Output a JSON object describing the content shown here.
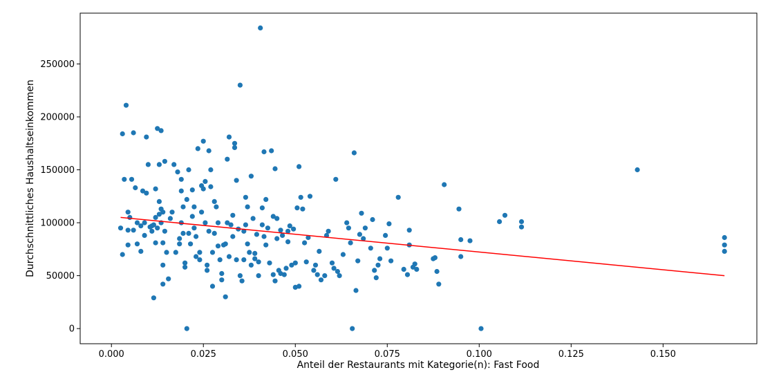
{
  "chart_data": {
    "type": "scatter",
    "title": "",
    "xlabel": "Anteil der Restaurants mit Kategorie(n): Fast Food",
    "ylabel": "Durchschnittliches Haushaltseinkommen",
    "xlim": [
      -0.0085,
      0.1755
    ],
    "ylim": [
      -14300,
      298000
    ],
    "x_ticks": [
      0.0,
      0.025,
      0.05,
      0.075,
      0.1,
      0.125,
      0.15
    ],
    "x_tick_labels": [
      "0.000",
      "0.025",
      "0.050",
      "0.075",
      "0.100",
      "0.125",
      "0.150"
    ],
    "y_ticks": [
      0,
      50000,
      100000,
      150000,
      200000,
      250000
    ],
    "y_tick_labels": [
      "0",
      "50000",
      "100000",
      "150000",
      "200000",
      "250000"
    ],
    "grid": false,
    "legend": "none",
    "colors": {
      "points": "#1f77b4",
      "trend_line": "#ff0000",
      "axes": "#000000"
    },
    "trend_line": {
      "x": [
        0.0025,
        0.1667
      ],
      "y": [
        105000,
        50000
      ]
    },
    "points": [
      [
        0.0025,
        95000
      ],
      [
        0.003,
        70000
      ],
      [
        0.003,
        184000
      ],
      [
        0.0035,
        141000
      ],
      [
        0.004,
        211000
      ],
      [
        0.0045,
        110000
      ],
      [
        0.0045,
        93000
      ],
      [
        0.0045,
        79000
      ],
      [
        0.005,
        105000
      ],
      [
        0.0055,
        141000
      ],
      [
        0.006,
        185000
      ],
      [
        0.006,
        93000
      ],
      [
        0.0065,
        133000
      ],
      [
        0.007,
        100000
      ],
      [
        0.007,
        80000
      ],
      [
        0.008,
        97000
      ],
      [
        0.008,
        73000
      ],
      [
        0.0085,
        130000
      ],
      [
        0.009,
        100000
      ],
      [
        0.009,
        88000
      ],
      [
        0.0095,
        181000
      ],
      [
        0.0095,
        128000
      ],
      [
        0.01,
        155000
      ],
      [
        0.0105,
        96000
      ],
      [
        0.011,
        92000
      ],
      [
        0.011,
        97000
      ],
      [
        0.0115,
        29000
      ],
      [
        0.0115,
        98000
      ],
      [
        0.012,
        105000
      ],
      [
        0.012,
        81000
      ],
      [
        0.012,
        132000
      ],
      [
        0.0125,
        189000
      ],
      [
        0.0125,
        95000
      ],
      [
        0.013,
        155000
      ],
      [
        0.013,
        120000
      ],
      [
        0.013,
        108000
      ],
      [
        0.0135,
        187000
      ],
      [
        0.0135,
        113000
      ],
      [
        0.0135,
        100000
      ],
      [
        0.014,
        81000
      ],
      [
        0.014,
        110000
      ],
      [
        0.014,
        60000
      ],
      [
        0.014,
        42000
      ],
      [
        0.0145,
        158000
      ],
      [
        0.0145,
        92000
      ],
      [
        0.015,
        72000
      ],
      [
        0.0155,
        47000
      ],
      [
        0.016,
        104000
      ],
      [
        0.0165,
        110000
      ],
      [
        0.017,
        155000
      ],
      [
        0.0175,
        72000
      ],
      [
        0.018,
        148000
      ],
      [
        0.0185,
        85000
      ],
      [
        0.0185,
        80000
      ],
      [
        0.019,
        141000
      ],
      [
        0.019,
        130000
      ],
      [
        0.019,
        100000
      ],
      [
        0.0195,
        115000
      ],
      [
        0.0195,
        90000
      ],
      [
        0.02,
        62000
      ],
      [
        0.02,
        58000
      ],
      [
        0.0205,
        0
      ],
      [
        0.0205,
        122000
      ],
      [
        0.021,
        90000
      ],
      [
        0.021,
        150000
      ],
      [
        0.0215,
        80000
      ],
      [
        0.022,
        106000
      ],
      [
        0.022,
        131000
      ],
      [
        0.0225,
        115000
      ],
      [
        0.0225,
        95000
      ],
      [
        0.023,
        87000
      ],
      [
        0.023,
        68000
      ],
      [
        0.0235,
        170000
      ],
      [
        0.024,
        72000
      ],
      [
        0.024,
        65000
      ],
      [
        0.0245,
        135000
      ],
      [
        0.0245,
        110000
      ],
      [
        0.025,
        177000
      ],
      [
        0.025,
        132000
      ],
      [
        0.0255,
        139000
      ],
      [
        0.0255,
        100000
      ],
      [
        0.026,
        60000
      ],
      [
        0.026,
        55000
      ],
      [
        0.0265,
        168000
      ],
      [
        0.0265,
        92000
      ],
      [
        0.027,
        150000
      ],
      [
        0.027,
        134000
      ],
      [
        0.0275,
        40000
      ],
      [
        0.0275,
        72000
      ],
      [
        0.028,
        90000
      ],
      [
        0.028,
        120000
      ],
      [
        0.0285,
        115000
      ],
      [
        0.029,
        100000
      ],
      [
        0.029,
        78000
      ],
      [
        0.0295,
        65000
      ],
      [
        0.03,
        52000
      ],
      [
        0.03,
        46000
      ],
      [
        0.0305,
        79000
      ],
      [
        0.031,
        80000
      ],
      [
        0.031,
        30000
      ],
      [
        0.0315,
        160000
      ],
      [
        0.0315,
        100000
      ],
      [
        0.032,
        181000
      ],
      [
        0.032,
        68000
      ],
      [
        0.0325,
        98000
      ],
      [
        0.033,
        87000
      ],
      [
        0.033,
        107000
      ],
      [
        0.0335,
        175000
      ],
      [
        0.0335,
        171000
      ],
      [
        0.034,
        140000
      ],
      [
        0.034,
        65000
      ],
      [
        0.0345,
        94000
      ],
      [
        0.035,
        230000
      ],
      [
        0.035,
        50000
      ],
      [
        0.0355,
        45000
      ],
      [
        0.036,
        65000
      ],
      [
        0.036,
        92000
      ],
      [
        0.0365,
        124000
      ],
      [
        0.0365,
        98000
      ],
      [
        0.037,
        115000
      ],
      [
        0.037,
        80000
      ],
      [
        0.0375,
        72000
      ],
      [
        0.038,
        144000
      ],
      [
        0.038,
        60000
      ],
      [
        0.0385,
        104000
      ],
      [
        0.039,
        71000
      ],
      [
        0.039,
        66000
      ],
      [
        0.0395,
        89000
      ],
      [
        0.04,
        50000
      ],
      [
        0.04,
        63000
      ],
      [
        0.0405,
        284000
      ],
      [
        0.041,
        114000
      ],
      [
        0.041,
        98000
      ],
      [
        0.0415,
        167000
      ],
      [
        0.0415,
        87000
      ],
      [
        0.042,
        79000
      ],
      [
        0.042,
        122000
      ],
      [
        0.0425,
        95000
      ],
      [
        0.043,
        62000
      ],
      [
        0.0435,
        168000
      ],
      [
        0.044,
        106000
      ],
      [
        0.044,
        51000
      ],
      [
        0.0445,
        151000
      ],
      [
        0.0445,
        45000
      ],
      [
        0.045,
        104000
      ],
      [
        0.045,
        85000
      ],
      [
        0.0455,
        55000
      ],
      [
        0.046,
        52000
      ],
      [
        0.046,
        93000
      ],
      [
        0.0465,
        88000
      ],
      [
        0.047,
        51000
      ],
      [
        0.0475,
        57000
      ],
      [
        0.048,
        92000
      ],
      [
        0.048,
        82000
      ],
      [
        0.0485,
        97000
      ],
      [
        0.049,
        60000
      ],
      [
        0.0495,
        94000
      ],
      [
        0.05,
        39000
      ],
      [
        0.05,
        62000
      ],
      [
        0.0505,
        114000
      ],
      [
        0.051,
        153000
      ],
      [
        0.051,
        40000
      ],
      [
        0.0515,
        124000
      ],
      [
        0.052,
        113000
      ],
      [
        0.0525,
        81000
      ],
      [
        0.053,
        63000
      ],
      [
        0.0535,
        86000
      ],
      [
        0.054,
        125000
      ],
      [
        0.055,
        55000
      ],
      [
        0.0555,
        60000
      ],
      [
        0.056,
        51000
      ],
      [
        0.0565,
        73000
      ],
      [
        0.057,
        46000
      ],
      [
        0.058,
        50000
      ],
      [
        0.0585,
        88000
      ],
      [
        0.059,
        92000
      ],
      [
        0.06,
        62000
      ],
      [
        0.0605,
        57000
      ],
      [
        0.061,
        141000
      ],
      [
        0.0615,
        54000
      ],
      [
        0.062,
        50000
      ],
      [
        0.063,
        70000
      ],
      [
        0.064,
        100000
      ],
      [
        0.0645,
        95000
      ],
      [
        0.065,
        81000
      ],
      [
        0.0655,
        0
      ],
      [
        0.066,
        166000
      ],
      [
        0.0665,
        36000
      ],
      [
        0.067,
        64000
      ],
      [
        0.0675,
        89000
      ],
      [
        0.068,
        109000
      ],
      [
        0.0685,
        85000
      ],
      [
        0.069,
        95000
      ],
      [
        0.0705,
        76000
      ],
      [
        0.071,
        103000
      ],
      [
        0.0715,
        55000
      ],
      [
        0.072,
        48000
      ],
      [
        0.0725,
        60000
      ],
      [
        0.073,
        66000
      ],
      [
        0.0745,
        88000
      ],
      [
        0.075,
        76000
      ],
      [
        0.0755,
        99000
      ],
      [
        0.076,
        64000
      ],
      [
        0.078,
        124000
      ],
      [
        0.0795,
        56000
      ],
      [
        0.0805,
        51000
      ],
      [
        0.081,
        93000
      ],
      [
        0.081,
        79000
      ],
      [
        0.082,
        58000
      ],
      [
        0.0825,
        61000
      ],
      [
        0.083,
        56000
      ],
      [
        0.0875,
        66000
      ],
      [
        0.088,
        67000
      ],
      [
        0.0885,
        54000
      ],
      [
        0.089,
        42000
      ],
      [
        0.0905,
        136000
      ],
      [
        0.0945,
        113000
      ],
      [
        0.095,
        84000
      ],
      [
        0.095,
        68000
      ],
      [
        0.0975,
        83000
      ],
      [
        0.1005,
        0
      ],
      [
        0.1055,
        101000
      ],
      [
        0.107,
        107000
      ],
      [
        0.1115,
        101000
      ],
      [
        0.1115,
        96000
      ],
      [
        0.143,
        150000
      ],
      [
        0.1667,
        86000
      ],
      [
        0.1667,
        79000
      ],
      [
        0.1667,
        73000
      ]
    ]
  }
}
